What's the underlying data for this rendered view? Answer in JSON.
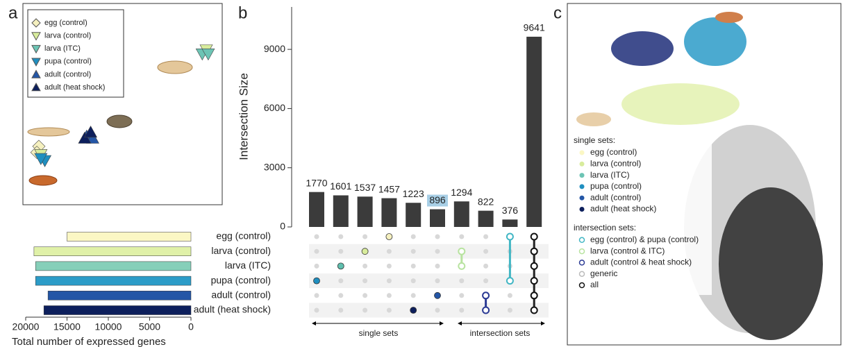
{
  "panel_labels": [
    "a",
    "b",
    "c"
  ],
  "chart_data": [
    {
      "type": "scatter",
      "xlim": [
        0,
        100
      ],
      "ylim": [
        0,
        100
      ],
      "series": [
        {
          "name": "egg (control)",
          "color": "#f5f0bf",
          "marker": "diamond",
          "x": [
            8,
            7
          ],
          "y": [
            29,
            26
          ]
        },
        {
          "name": "larva (control)",
          "color": "#d8ec9c",
          "marker": "down",
          "x": [
            92,
            9
          ],
          "y": [
            77,
            25
          ]
        },
        {
          "name": "larva (ITC)",
          "color": "#6cc4b4",
          "marker": "down",
          "x": [
            90,
            93
          ],
          "y": [
            75,
            75
          ]
        },
        {
          "name": "pupa (control)",
          "color": "#1f8fc0",
          "marker": "down",
          "x": [
            11,
            9
          ],
          "y": [
            22,
            23
          ]
        },
        {
          "name": "adult (control)",
          "color": "#2456a6",
          "marker": "up",
          "x": [
            32,
            35
          ],
          "y": [
            34,
            33
          ]
        },
        {
          "name": "adult (heat shock)",
          "color": "#0d1f5c",
          "marker": "up",
          "x": [
            31,
            34
          ],
          "y": [
            33,
            36
          ]
        }
      ]
    },
    {
      "type": "bar",
      "orientation": "horizontal",
      "categories": [
        "egg (control)",
        "larva (control)",
        "larva (ITC)",
        "pupa (control)",
        "adult (control)",
        "adult (heat shock)"
      ],
      "values": [
        15000,
        19000,
        18800,
        18800,
        17300,
        17800
      ],
      "colors": [
        "#fbf7c4",
        "#e0f1a8",
        "#86cfb9",
        "#2c9cc8",
        "#2456a6",
        "#0d1f5c"
      ],
      "xlim": [
        20000,
        0
      ],
      "xticks": [
        20000,
        15000,
        10000,
        5000,
        0
      ],
      "xlabel": "Total number of expressed genes"
    },
    {
      "type": "bar",
      "values": [
        1770,
        1601,
        1537,
        1457,
        1223,
        896,
        1294,
        822,
        376,
        9641
      ],
      "color": "#3b3b3b",
      "highlight": 5,
      "ylim": [
        0,
        11150
      ],
      "yticks": [
        0,
        3000,
        6000,
        9000
      ],
      "ylabel": "Intersection Size",
      "matrix": [
        [
          3
        ],
        [
          2
        ],
        [
          1
        ],
        [
          0
        ],
        [
          5
        ],
        [
          4
        ],
        [
          1,
          2
        ],
        [
          4,
          5
        ],
        [
          0,
          3
        ],
        [
          0,
          1,
          2,
          3,
          4,
          5
        ]
      ],
      "matrix_colors": [
        "#1f8fc0",
        "#5fbfae",
        "#d8ec9c",
        "#f5f0bf",
        "#0d1f5c",
        "#2456a6",
        "#b8e3a0",
        "#2b3a94",
        "#41b6c4",
        "#111111"
      ],
      "matrix_open": [
        false,
        false,
        false,
        false,
        false,
        false,
        true,
        true,
        true,
        true
      ],
      "annotations": [
        "single sets",
        "intersection sets"
      ]
    },
    {
      "type": "scatter",
      "legend_groups": [
        {
          "title": "single sets:",
          "entries": [
            {
              "name": "egg (control)",
              "color": "#fbf7c4"
            },
            {
              "name": "larva (control)",
              "color": "#d8ec9c"
            },
            {
              "name": "larva (ITC)",
              "color": "#6cc4b4"
            },
            {
              "name": "pupa (control)",
              "color": "#1f8fc0"
            },
            {
              "name": "adult (control)",
              "color": "#2456a6"
            },
            {
              "name": "adult (heat shock)",
              "color": "#0d1f5c"
            }
          ]
        },
        {
          "title": "intersection sets:",
          "entries": [
            {
              "name": "egg (control) & pupa (control)",
              "color": "#41b6c4"
            },
            {
              "name": "larva (control & ITC)",
              "color": "#b8e3a0"
            },
            {
              "name": "adult (control & heat shock)",
              "color": "#2b3a94"
            },
            {
              "name": "generic",
              "color": "#bbbbbb"
            },
            {
              "name": "all",
              "color": "#111111"
            }
          ]
        }
      ]
    }
  ]
}
